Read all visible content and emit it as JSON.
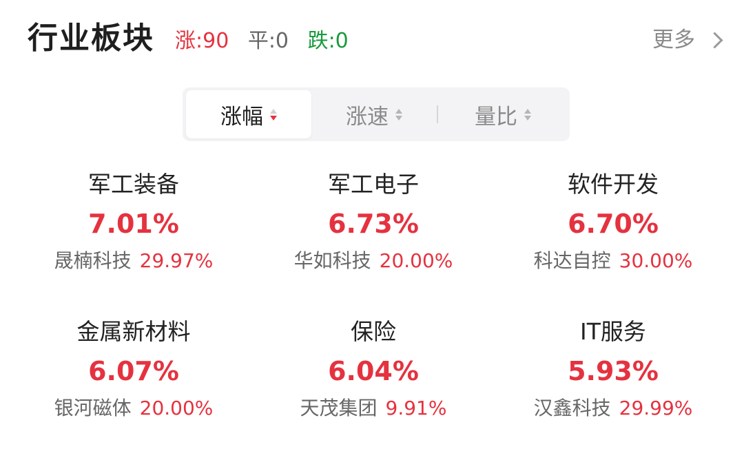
{
  "header": {
    "title": "行业板块",
    "up_label": "涨:90",
    "flat_label": "平:0",
    "down_label": "跌:0",
    "more_label": "更多"
  },
  "tabs": [
    {
      "label": "涨幅",
      "active": true
    },
    {
      "label": "涨速",
      "active": false
    },
    {
      "label": "量比",
      "active": false
    }
  ],
  "sectors": [
    {
      "name": "军工装备",
      "change": "7.01%",
      "leader": "晟楠科技",
      "leader_change": "29.97%"
    },
    {
      "name": "军工电子",
      "change": "6.73%",
      "leader": "华如科技",
      "leader_change": "20.00%"
    },
    {
      "name": "软件开发",
      "change": "6.70%",
      "leader": "科达自控",
      "leader_change": "30.00%"
    },
    {
      "name": "金属新材料",
      "change": "6.07%",
      "leader": "银河磁体",
      "leader_change": "20.00%"
    },
    {
      "name": "保险",
      "change": "6.04%",
      "leader": "天茂集团",
      "leader_change": "9.91%"
    },
    {
      "name": "IT服务",
      "change": "5.93%",
      "leader": "汉鑫科技",
      "leader_change": "29.99%"
    }
  ],
  "colors": {
    "up": "#e5323f",
    "down": "#1a9a3c",
    "flat": "#666666"
  }
}
